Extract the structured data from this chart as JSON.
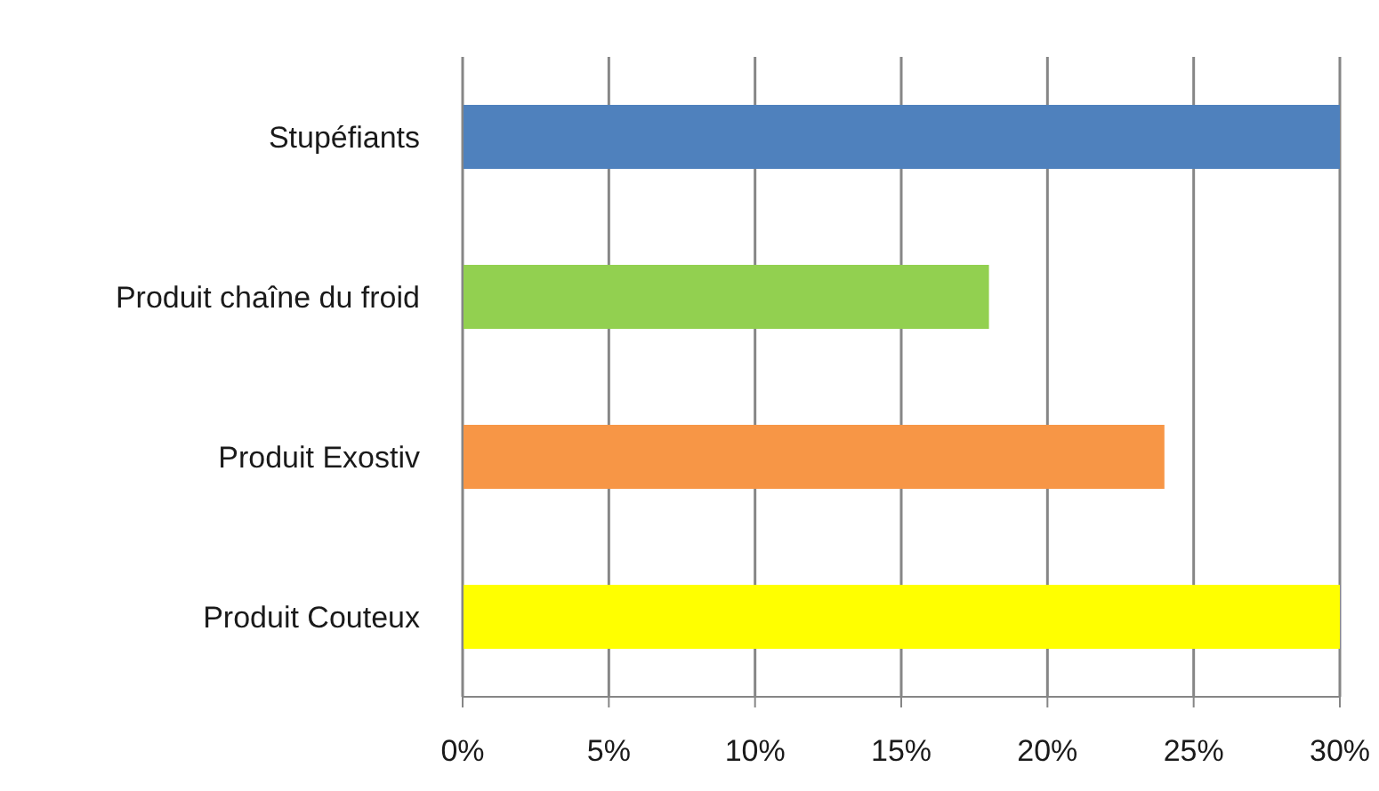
{
  "chart_data": {
    "type": "bar",
    "orientation": "horizontal",
    "categories": [
      "Stupéfiants",
      "Produit chaîne du froid",
      "Produit Exostiv",
      "Produit Couteux"
    ],
    "values": [
      30,
      18,
      24,
      30
    ],
    "colors": [
      "#4f81bd",
      "#92d050",
      "#f79646",
      "#ffff00"
    ],
    "xlim": [
      0,
      30
    ],
    "xticks": [
      {
        "value": 0,
        "label": "0%"
      },
      {
        "value": 5,
        "label": "5%"
      },
      {
        "value": 10,
        "label": "10%"
      },
      {
        "value": 15,
        "label": "15%"
      },
      {
        "value": 20,
        "label": "20%"
      },
      {
        "value": 25,
        "label": "25%"
      },
      {
        "value": 30,
        "label": "30%"
      }
    ],
    "grid": "x"
  }
}
